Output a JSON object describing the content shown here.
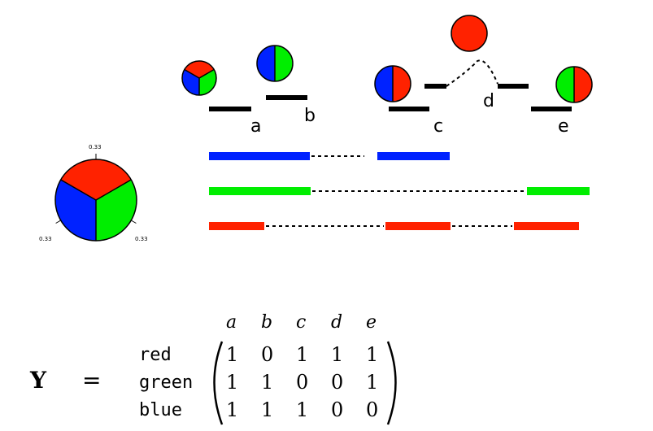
{
  "colors": {
    "red": "#ff2200",
    "green": "#00ee00",
    "blue": "#0022ff",
    "black": "#000000"
  },
  "segments": {
    "a": "a",
    "b": "b",
    "c": "c",
    "d": "d",
    "e": "e"
  },
  "pie_labels": [
    "0.33",
    "0.33",
    "0.33"
  ],
  "matrix": {
    "symbol": "Y",
    "equals": "=",
    "columns": [
      "a",
      "b",
      "c",
      "d",
      "e"
    ],
    "rows": [
      {
        "label": "red",
        "values": [
          "1",
          "0",
          "1",
          "1",
          "1"
        ]
      },
      {
        "label": "green",
        "values": [
          "1",
          "1",
          "0",
          "0",
          "1"
        ]
      },
      {
        "label": "blue",
        "values": [
          "1",
          "1",
          "1",
          "0",
          "0"
        ]
      }
    ]
  }
}
